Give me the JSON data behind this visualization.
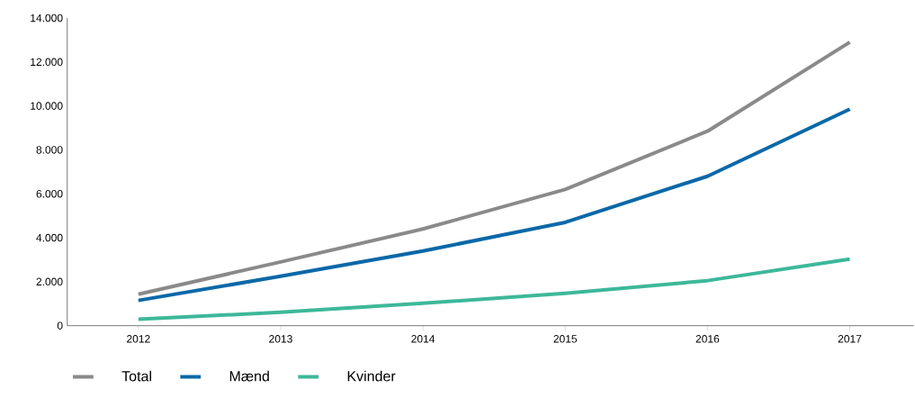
{
  "chart_data": {
    "type": "line",
    "x": [
      2012,
      2013,
      2014,
      2015,
      2016,
      2017
    ],
    "series": [
      {
        "name": "Total",
        "color": "#8a8a8a",
        "values": [
          1430,
          2900,
          4400,
          6200,
          8850,
          12900
        ]
      },
      {
        "name": "Mænd",
        "color": "#0a68a8",
        "values": [
          1150,
          2250,
          3400,
          4700,
          6800,
          9850
        ]
      },
      {
        "name": "Kvinder",
        "color": "#3db89a",
        "values": [
          290,
          610,
          1020,
          1470,
          2050,
          3030
        ]
      }
    ],
    "xlim": [
      2011.5,
      2017.45
    ],
    "xticks": [
      2012,
      2013,
      2014,
      2015,
      2016,
      2017
    ],
    "ylim": [
      0,
      14000
    ],
    "yticks": [
      {
        "value": 0,
        "label": "0"
      },
      {
        "value": 2000,
        "label": "2.000"
      },
      {
        "value": 4000,
        "label": "4.000"
      },
      {
        "value": 6000,
        "label": "6.000"
      },
      {
        "value": 8000,
        "label": "8.000"
      },
      {
        "value": 10000,
        "label": "10.000"
      },
      {
        "value": 12000,
        "label": "12.000"
      },
      {
        "value": 14000,
        "label": "14.000"
      }
    ],
    "grid": false,
    "legend": "bottom left",
    "marker": "none",
    "line_style": "solid"
  }
}
